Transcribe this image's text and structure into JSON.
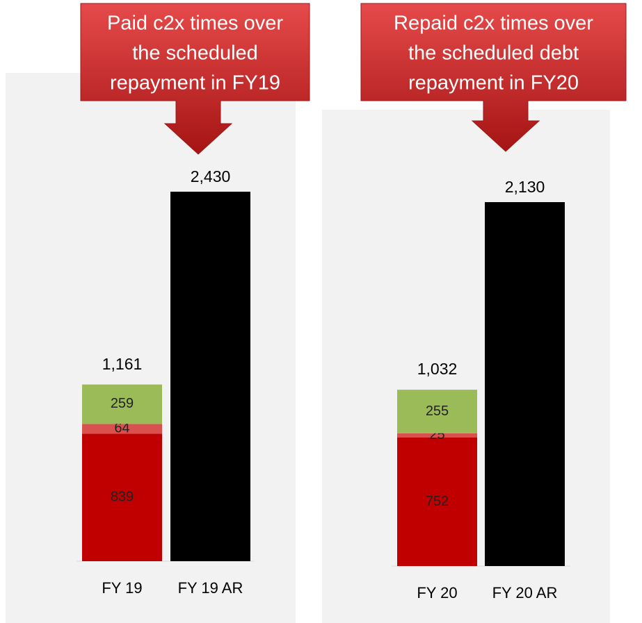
{
  "chart_data": [
    {
      "type": "bar",
      "annotation": [
        "Paid c2x times over",
        "the scheduled",
        "repayment in FY19"
      ],
      "categories": [
        "FY 19",
        "FY 19 AR"
      ],
      "series": [
        {
          "color": "#c00000",
          "values": [
            839,
            null
          ]
        },
        {
          "color": "#d9504e",
          "values": [
            64,
            null
          ]
        },
        {
          "color": "#9bbb59",
          "values": [
            259,
            null
          ]
        },
        {
          "color": "#000000",
          "values": [
            null,
            2430
          ],
          "value_labels": [
            null,
            "2,430"
          ]
        }
      ],
      "totals": {
        "values": [
          1161,
          null
        ],
        "value_labels": [
          "1,161",
          null
        ]
      }
    },
    {
      "type": "bar",
      "annotation": [
        "Repaid c2x times over",
        "the scheduled debt",
        "repayment in FY20"
      ],
      "categories": [
        "FY 20",
        "FY 20 AR"
      ],
      "series": [
        {
          "color": "#c00000",
          "values": [
            752,
            null
          ]
        },
        {
          "color": "#d9504e",
          "values": [
            25,
            null
          ]
        },
        {
          "color": "#9bbb59",
          "values": [
            255,
            null
          ]
        },
        {
          "color": "#000000",
          "values": [
            null,
            2130
          ],
          "value_labels": [
            null,
            "2,130"
          ]
        }
      ],
      "totals": {
        "values": [
          1032,
          null
        ],
        "value_labels": [
          "1,032",
          null
        ]
      }
    }
  ]
}
